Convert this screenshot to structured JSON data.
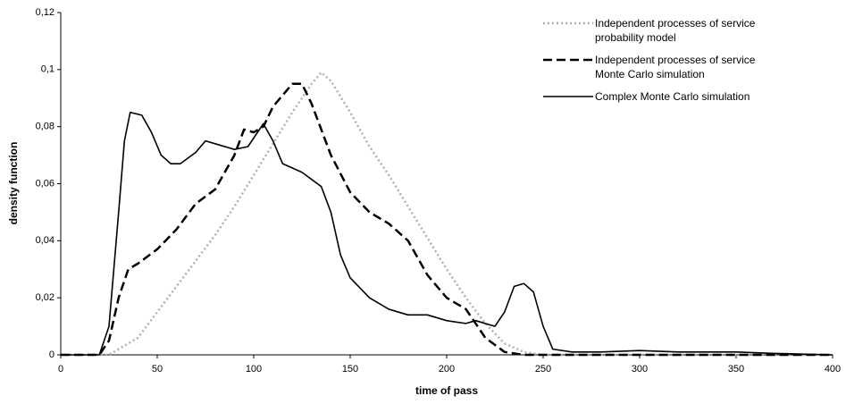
{
  "chart_data": {
    "type": "line",
    "xlabel": "time of pass",
    "ylabel": "density function",
    "xlim": [
      0,
      400
    ],
    "xticks": [
      0,
      50,
      100,
      150,
      200,
      250,
      300,
      350,
      400
    ],
    "ylim": [
      0,
      0.12
    ],
    "yticks": [
      0,
      {
        "value": 0.02,
        "label": "0,02"
      },
      {
        "value": 0.04,
        "label": "0,04"
      },
      {
        "value": 0.06,
        "label": "0,06"
      },
      {
        "value": 0.08,
        "label": "0,08"
      },
      {
        "value": 0.1,
        "label": "0,1"
      },
      {
        "value": 0.12,
        "label": "0,12"
      }
    ],
    "grid": false,
    "legend": "top-right",
    "series": [
      {
        "name": "Independent processes of service probability model",
        "color": "#b0b0b0",
        "linestyle": "dotted",
        "x": [
          0,
          25,
          30,
          40,
          50,
          60,
          70,
          80,
          90,
          100,
          110,
          120,
          130,
          135,
          140,
          150,
          160,
          170,
          180,
          190,
          200,
          210,
          220,
          230,
          240,
          250,
          400
        ],
        "values": [
          0,
          0,
          0.002,
          0.006,
          0.015,
          0.024,
          0.033,
          0.042,
          0.052,
          0.063,
          0.074,
          0.085,
          0.095,
          0.099,
          0.096,
          0.085,
          0.073,
          0.063,
          0.052,
          0.041,
          0.03,
          0.02,
          0.011,
          0.004,
          0.001,
          0,
          0
        ]
      },
      {
        "name": "Independent processes of service Monte Carlo simulation",
        "color": "#000000",
        "linestyle": "dashed",
        "x": [
          0,
          20,
          25,
          30,
          35,
          40,
          50,
          60,
          70,
          80,
          90,
          95,
          100,
          105,
          110,
          120,
          125,
          130,
          140,
          150,
          160,
          170,
          180,
          190,
          200,
          210,
          220,
          230,
          240,
          400
        ],
        "values": [
          0,
          0,
          0.005,
          0.02,
          0.03,
          0.032,
          0.037,
          0.044,
          0.053,
          0.058,
          0.07,
          0.079,
          0.078,
          0.08,
          0.087,
          0.095,
          0.095,
          0.088,
          0.07,
          0.057,
          0.05,
          0.046,
          0.04,
          0.028,
          0.02,
          0.016,
          0.006,
          0.001,
          0,
          0
        ]
      },
      {
        "name": "Complex Monte Carlo simulation",
        "color": "#000000",
        "linestyle": "solid",
        "x": [
          0,
          20,
          25,
          30,
          33,
          36,
          42,
          47,
          52,
          57,
          62,
          70,
          75,
          80,
          90,
          97,
          105,
          110,
          115,
          125,
          135,
          140,
          145,
          150,
          160,
          170,
          180,
          190,
          200,
          210,
          215,
          225,
          230,
          235,
          240,
          245,
          250,
          255,
          265,
          280,
          300,
          320,
          350,
          370,
          400
        ],
        "values": [
          0,
          0,
          0.01,
          0.05,
          0.075,
          0.085,
          0.084,
          0.078,
          0.07,
          0.067,
          0.067,
          0.071,
          0.075,
          0.074,
          0.072,
          0.073,
          0.081,
          0.075,
          0.067,
          0.064,
          0.059,
          0.05,
          0.035,
          0.027,
          0.02,
          0.016,
          0.014,
          0.014,
          0.012,
          0.011,
          0.012,
          0.01,
          0.015,
          0.024,
          0.025,
          0.022,
          0.01,
          0.002,
          0.001,
          0.001,
          0.0015,
          0.001,
          0.001,
          0.0005,
          0
        ]
      }
    ]
  }
}
